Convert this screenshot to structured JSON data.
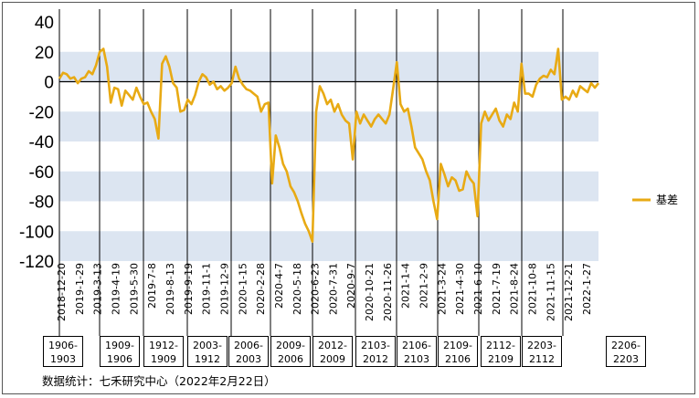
{
  "chart_data": {
    "type": "line",
    "ylim": [
      -120,
      40
    ],
    "yticks": [
      40,
      20,
      0,
      -20,
      -40,
      -60,
      -80,
      -100,
      -120
    ],
    "shaded_bands": [
      [
        0,
        20
      ],
      [
        -40,
        -20
      ],
      [
        -80,
        -60
      ],
      [
        -120,
        -100
      ]
    ],
    "grid": false,
    "legend_position": "right",
    "x_tick_labels": [
      "2018-12-20",
      "2019-1-29",
      "2019-3-13",
      "2019-4-19",
      "2019-5-30",
      "2019-7-8",
      "2019-8-13",
      "2019-9-19",
      "2019-11-1",
      "2019-12-9",
      "2020-1-15",
      "2020-2-28",
      "2020-4-7",
      "2020-5-18",
      "2020-6-23",
      "2020-7-31",
      "2020-9-7",
      "2020-10-21",
      "2020-11-26",
      "2021-1-4",
      "2021-2-9",
      "2021-3-24",
      "2021-4-30",
      "2021-6-10",
      "2021-7-19",
      "2021-8-24",
      "2021-10-8",
      "2021-11-15",
      "2021-12-21",
      "2022-1-27"
    ],
    "contract_boxes": [
      "1906-\n1903",
      "1909-\n1906",
      "1912-\n1909",
      "2003-\n1912",
      "2006-\n2003",
      "2009-\n2006",
      "2012-\n2009",
      "2103-\n2012",
      "2106-\n2103",
      "2109-\n2106",
      "2112-\n2109",
      "2203-\n2112",
      "2206-\n2203"
    ],
    "series": [
      {
        "name": "基差",
        "color": "#E8AA14",
        "points": [
          [
            0,
            2
          ],
          [
            1,
            6
          ],
          [
            2,
            5
          ],
          [
            3,
            2
          ],
          [
            4,
            3
          ],
          [
            5,
            -1
          ],
          [
            6,
            2
          ],
          [
            7,
            3
          ],
          [
            8,
            7
          ],
          [
            9,
            5
          ],
          [
            10,
            11
          ],
          [
            11,
            20
          ],
          [
            12,
            22
          ],
          [
            13,
            10
          ],
          [
            14,
            -14
          ],
          [
            15,
            -4
          ],
          [
            16,
            -5
          ],
          [
            17,
            -16
          ],
          [
            18,
            -6
          ],
          [
            19,
            -9
          ],
          [
            20,
            -12
          ],
          [
            21,
            -4
          ],
          [
            22,
            -10
          ],
          [
            23,
            -15
          ],
          [
            24,
            -14
          ],
          [
            25,
            -20
          ],
          [
            26,
            -25
          ],
          [
            27,
            -38
          ],
          [
            28,
            12
          ],
          [
            29,
            17
          ],
          [
            30,
            10
          ],
          [
            31,
            -1
          ],
          [
            32,
            -4
          ],
          [
            33,
            -20
          ],
          [
            34,
            -19
          ],
          [
            35,
            -12
          ],
          [
            36,
            -15
          ],
          [
            37,
            -9
          ],
          [
            38,
            0
          ],
          [
            39,
            5
          ],
          [
            40,
            3
          ],
          [
            41,
            -2
          ],
          [
            42,
            0
          ],
          [
            43,
            -5
          ],
          [
            44,
            -3
          ],
          [
            45,
            -6
          ],
          [
            46,
            -4
          ],
          [
            47,
            -1
          ],
          [
            48,
            10
          ],
          [
            49,
            2
          ],
          [
            50,
            -2
          ],
          [
            51,
            -5
          ],
          [
            52,
            -6
          ],
          [
            53,
            -8
          ],
          [
            54,
            -10
          ],
          [
            55,
            -20
          ],
          [
            56,
            -15
          ],
          [
            57,
            -14
          ],
          [
            58,
            -68
          ],
          [
            59,
            -36
          ],
          [
            60,
            -44
          ],
          [
            61,
            -55
          ],
          [
            62,
            -60
          ],
          [
            63,
            -70
          ],
          [
            64,
            -74
          ],
          [
            65,
            -80
          ],
          [
            66,
            -88
          ],
          [
            67,
            -95
          ],
          [
            68,
            -100
          ],
          [
            69,
            -107
          ],
          [
            70,
            -20
          ],
          [
            71,
            -3
          ],
          [
            72,
            -8
          ],
          [
            73,
            -15
          ],
          [
            74,
            -12
          ],
          [
            75,
            -20
          ],
          [
            76,
            -15
          ],
          [
            77,
            -22
          ],
          [
            78,
            -26
          ],
          [
            79,
            -28
          ],
          [
            80,
            -52
          ],
          [
            81,
            -20
          ],
          [
            82,
            -28
          ],
          [
            83,
            -22
          ],
          [
            84,
            -26
          ],
          [
            85,
            -30
          ],
          [
            86,
            -25
          ],
          [
            87,
            -22
          ],
          [
            88,
            -25
          ],
          [
            89,
            -28
          ],
          [
            90,
            -22
          ],
          [
            91,
            -5
          ],
          [
            92,
            13
          ],
          [
            93,
            -15
          ],
          [
            94,
            -20
          ],
          [
            95,
            -18
          ],
          [
            96,
            -30
          ],
          [
            97,
            -44
          ],
          [
            98,
            -48
          ],
          [
            99,
            -52
          ],
          [
            100,
            -60
          ],
          [
            101,
            -66
          ],
          [
            102,
            -80
          ],
          [
            103,
            -92
          ],
          [
            104,
            -55
          ],
          [
            105,
            -62
          ],
          [
            106,
            -70
          ],
          [
            107,
            -64
          ],
          [
            108,
            -66
          ],
          [
            109,
            -73
          ],
          [
            110,
            -72
          ],
          [
            111,
            -60
          ],
          [
            112,
            -65
          ],
          [
            113,
            -68
          ],
          [
            114,
            -90
          ],
          [
            115,
            -28
          ],
          [
            116,
            -20
          ],
          [
            117,
            -26
          ],
          [
            118,
            -22
          ],
          [
            119,
            -18
          ],
          [
            120,
            -26
          ],
          [
            121,
            -30
          ],
          [
            122,
            -22
          ],
          [
            123,
            -25
          ],
          [
            124,
            -14
          ],
          [
            125,
            -20
          ],
          [
            126,
            12
          ],
          [
            127,
            -8
          ],
          [
            128,
            -8
          ],
          [
            129,
            -10
          ],
          [
            130,
            -2
          ],
          [
            131,
            2
          ],
          [
            132,
            4
          ],
          [
            133,
            3
          ],
          [
            134,
            8
          ],
          [
            135,
            5
          ],
          [
            136,
            22
          ],
          [
            137,
            -12
          ],
          [
            138,
            -10
          ],
          [
            139,
            -12
          ],
          [
            140,
            -6
          ],
          [
            141,
            -10
          ],
          [
            142,
            -3
          ],
          [
            143,
            -5
          ],
          [
            144,
            -7
          ],
          [
            145,
            -1
          ],
          [
            146,
            -4
          ],
          [
            147,
            -1
          ]
        ]
      }
    ]
  },
  "source_text": "数据统计：七禾研究中心（2022年2月22日）"
}
